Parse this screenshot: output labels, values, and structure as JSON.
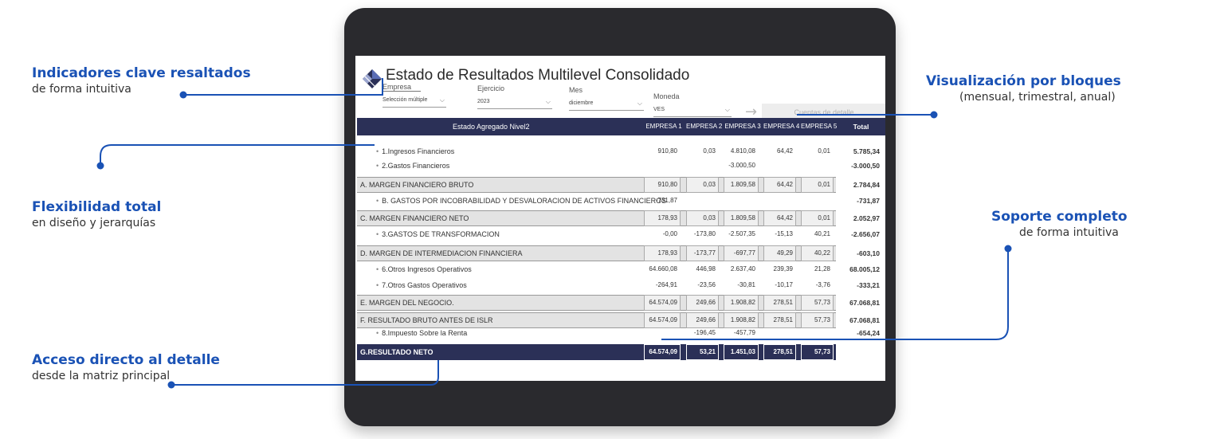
{
  "callouts": {
    "kpi": {
      "title": "Indicadores clave resaltados",
      "subtitle": "de forma intuitiva"
    },
    "blocks": {
      "title": "Visualización por bloques",
      "subtitle": "(mensual, trimestral, anual)"
    },
    "flex": {
      "title": "Flexibilidad total",
      "subtitle": "en diseño y jerarquías"
    },
    "support": {
      "title": "Soporte completo",
      "subtitle": "de forma intuitiva"
    },
    "access": {
      "title": "Acceso directo al detalle",
      "subtitle": "desde la matriz principal"
    }
  },
  "report": {
    "title": "Estado de Resultados Multilevel Consolidado",
    "logo_icon": "diamond-logo-icon",
    "filters": {
      "empresa": {
        "label": "Empresa",
        "value": "Selección múltiple"
      },
      "ejercicio": {
        "label": "Ejercicio",
        "value": "2023"
      },
      "mes": {
        "label": "Mes",
        "value": "diciembre"
      },
      "moneda": {
        "label": "Moneda",
        "value": "VES"
      }
    },
    "arrow_icon": "arrow-right-icon",
    "detail_button": "Cuentas de detalle"
  },
  "matrix": {
    "header_label": "Estado Agregado Nivel2",
    "columns": [
      "EMPRESA 1",
      "EMPRESA 2",
      "EMPRESA 3",
      "EMPRESA 4",
      "EMPRESA 5",
      "Total"
    ],
    "rows": [
      {
        "label": "1.Ingresos Financieros",
        "bullet": "•",
        "values": [
          "910,80",
          "0,03",
          "4.810,08",
          "64,42",
          "0,01",
          "5.785,34"
        ]
      },
      {
        "label": "2.Gastos Financieros",
        "bullet": "•",
        "values": [
          "",
          "",
          "-3.000,50",
          "",
          "",
          "-3.000,50"
        ]
      },
      {
        "label": "A. MARGEN FINANCIERO BRUTO",
        "values": [
          "910,80",
          "0,03",
          "1.809,58",
          "64,42",
          "0,01",
          "2.784,84"
        ]
      },
      {
        "label": "B. GASTOS POR INCOBRABILIDAD Y DESVALORACION DE ACTIVOS FINANCIEROS",
        "bullet": "•",
        "values": [
          "-731,87",
          "",
          "",
          "",
          "",
          "-731,87"
        ]
      },
      {
        "label": "C. MARGEN FINANCIERO NETO",
        "values": [
          "178,93",
          "0,03",
          "1.809,58",
          "64,42",
          "0,01",
          "2.052,97"
        ]
      },
      {
        "label": "3.GASTOS DE TRANSFORMACION",
        "bullet": "•",
        "values": [
          "-0,00",
          "-173,80",
          "-2.507,35",
          "-15,13",
          "40,21",
          "-2.656,07"
        ]
      },
      {
        "label": "D. MARGEN DE INTERMEDIACION FINANCIERA",
        "values": [
          "178,93",
          "-173,77",
          "-697,77",
          "49,29",
          "40,22",
          "-603,10"
        ]
      },
      {
        "label": "6.Otros Ingresos Operativos",
        "bullet": "•",
        "values": [
          "64.660,08",
          "446,98",
          "2.637,40",
          "239,39",
          "21,28",
          "68.005,12"
        ]
      },
      {
        "label": "7.Otros Gastos Operativos",
        "bullet": "•",
        "values": [
          "-264,91",
          "-23,56",
          "-30,81",
          "-10,17",
          "-3,76",
          "-333,21"
        ]
      },
      {
        "label": "E. MARGEN DEL NEGOCIO.",
        "values": [
          "64.574,09",
          "249,66",
          "1.908,82",
          "278,51",
          "57,73",
          "67.068,81"
        ]
      },
      {
        "label": "F. RESULTADO BRUTO ANTES DE ISLR",
        "values": [
          "64.574,09",
          "249,66",
          "1.908,82",
          "278,51",
          "57,73",
          "67.068,81"
        ]
      },
      {
        "label": "8.Impuesto Sobre la Renta",
        "bullet": "•",
        "values": [
          "",
          "-196,45",
          "-457,79",
          "",
          "",
          "-654,24"
        ]
      },
      {
        "label": "G.RESULTADO NETO",
        "values": [
          "64.574,09",
          "53,21",
          "1.451,03",
          "278,51",
          "57,73",
          "66.414,57"
        ]
      }
    ]
  },
  "colors": {
    "accent": "#1a52b5",
    "header_navy": "#2b3057",
    "device": "#2a2a2e"
  }
}
